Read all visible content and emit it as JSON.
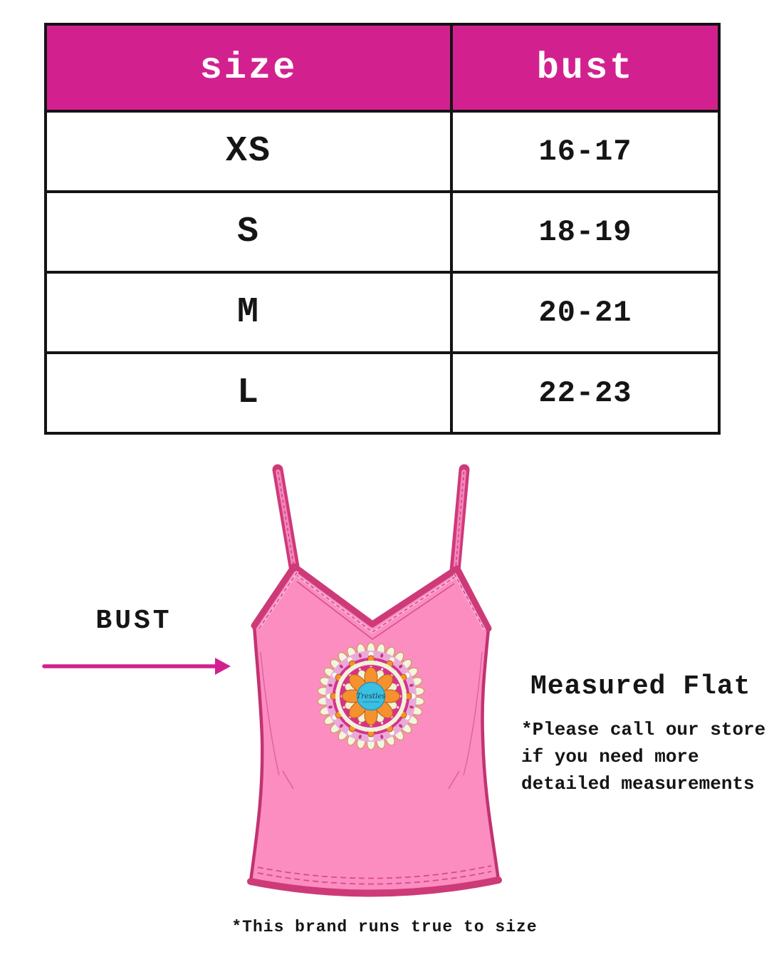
{
  "colors": {
    "accent_magenta": "#D2218F",
    "garment_body_pink": "#FB8DC1",
    "garment_trim_pink": "#CE3A78",
    "garment_outline": "#C23370",
    "mandala_orange": "#F5912E",
    "mandala_blue": "#3BBFE3",
    "mandala_cream": "#F0F3D9",
    "text_black": "#151515"
  },
  "size_table": {
    "headers": [
      "size",
      "bust"
    ],
    "rows": [
      {
        "size": "XS",
        "bust": "16-17"
      },
      {
        "size": "S",
        "bust": "18-19"
      },
      {
        "size": "M",
        "bust": "20-21"
      },
      {
        "size": "L",
        "bust": "22-23"
      }
    ]
  },
  "bust_indicator": {
    "label": "BUST"
  },
  "notes": {
    "measured_flat": "Measured Flat",
    "store_note_lines": [
      "*Please call our store",
      "if you need more",
      "detailed measurements"
    ],
    "brand_note": "*This brand runs true to size"
  },
  "garment": {
    "logo_text": "Trestles"
  }
}
